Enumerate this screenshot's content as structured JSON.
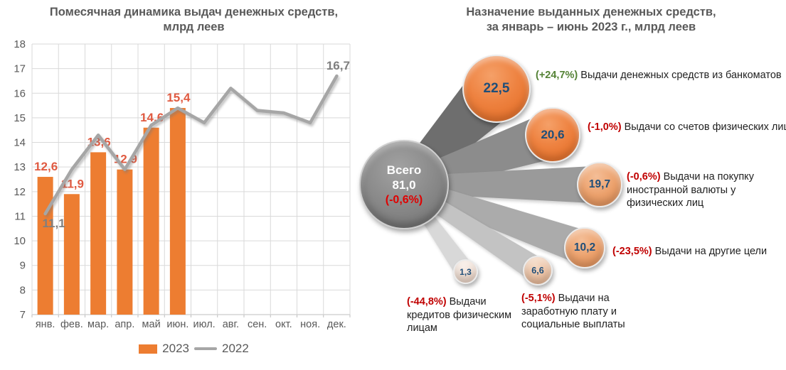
{
  "left_chart": {
    "title_line1": "Помесячная динамика выдач денежных средств,",
    "title_line2": "млрд леев",
    "legend": {
      "bars": "2023",
      "line": "2022"
    }
  },
  "right_chart": {
    "title_line1": "Назначение выданных денежных средств,",
    "title_line2": "за январь – июнь 2023 г., млрд леев",
    "total": {
      "label": "Всего",
      "value": "81,0",
      "pct": "(-0,6%)"
    },
    "bubbles": [
      {
        "value": "22,5",
        "pct": "(+24,7%)",
        "direction": "up",
        "label": "Выдачи денежных средств из банкоматов"
      },
      {
        "value": "20,6",
        "pct": "(-1,0%)",
        "direction": "down",
        "label": "Выдачи со счетов физических лиц"
      },
      {
        "value": "19,7",
        "pct": "(-0,6%)",
        "direction": "down",
        "label": "Выдачи на покупку иностранной валюты у физических лиц"
      },
      {
        "value": "10,2",
        "pct": "(-23,5%)",
        "direction": "down",
        "label": "Выдачи на другие цели"
      },
      {
        "value": "1,3",
        "pct": "(-44,8%)",
        "direction": "down",
        "label": "Выдачи кредитов физическим лицам"
      },
      {
        "value": "6,6",
        "pct": "(-5,1%)",
        "direction": "down",
        "label": "Выдачи на заработную плату и социальные выплаты"
      }
    ]
  },
  "colors": {
    "bar_orange": "#ED7D31",
    "line_gray": "#A6A6A6",
    "bar_label_red": "#E05A41",
    "line_label_gray": "#7F7F7F",
    "pct_green": "#548235",
    "pct_red": "#C00000",
    "hub_pct_red": "#E00000",
    "bubble_value_navy": "#1F4E79",
    "title_gray": "#595959",
    "gridline": "#D9D9D9"
  },
  "chart_data": [
    {
      "type": "bar",
      "title": "Помесячная динамика выдач денежных средств, млрд леев",
      "categories": [
        "янв.",
        "фев.",
        "мар.",
        "апр.",
        "май",
        "июн.",
        "июл.",
        "авг.",
        "сен.",
        "окт.",
        "ноя.",
        "дек."
      ],
      "series": [
        {
          "name": "2023",
          "render": "bar",
          "color": "#ED7D31",
          "values": [
            12.6,
            11.9,
            13.6,
            12.9,
            14.6,
            15.4,
            null,
            null,
            null,
            null,
            null,
            null
          ],
          "labels": [
            "12,6",
            "11,9",
            "13,6",
            "12,9",
            "14,6",
            "15,4"
          ]
        },
        {
          "name": "2022",
          "render": "line",
          "color": "#A6A6A6",
          "values": [
            11.1,
            12.9,
            14.3,
            12.9,
            14.7,
            15.4,
            14.8,
            16.2,
            15.3,
            15.2,
            14.8,
            16.7
          ],
          "point_labels": {
            "0": "11,1",
            "11": "16,7"
          },
          "note": "only first and last points carry data labels; intermediate 2022 values estimated from gridlines"
        }
      ],
      "ylim": [
        7,
        18
      ],
      "ytick_step": 1,
      "grid": true,
      "legend_position": "bottom"
    },
    {
      "type": "bubble",
      "title": "Назначение выданных денежных средств, за январь – июнь 2023 г., млрд леев",
      "center": {
        "label": "Всего",
        "value": 81.0,
        "change_pct": -0.6
      },
      "items": [
        {
          "label": "Выдачи денежных средств из банкоматов",
          "value": 22.5,
          "change_pct": 24.7
        },
        {
          "label": "Выдачи со счетов физических лиц",
          "value": 20.6,
          "change_pct": -1.0
        },
        {
          "label": "Выдачи на покупку иностранной валюты у физических лиц",
          "value": 19.7,
          "change_pct": -0.6
        },
        {
          "label": "Выдачи на другие цели",
          "value": 10.2,
          "change_pct": -23.5
        },
        {
          "label": "Выдачи кредитов физическим лицам",
          "value": 1.3,
          "change_pct": -44.8
        },
        {
          "label": "Выдачи на заработную плату и социальные выплаты",
          "value": 6.6,
          "change_pct": -5.1
        }
      ]
    }
  ]
}
